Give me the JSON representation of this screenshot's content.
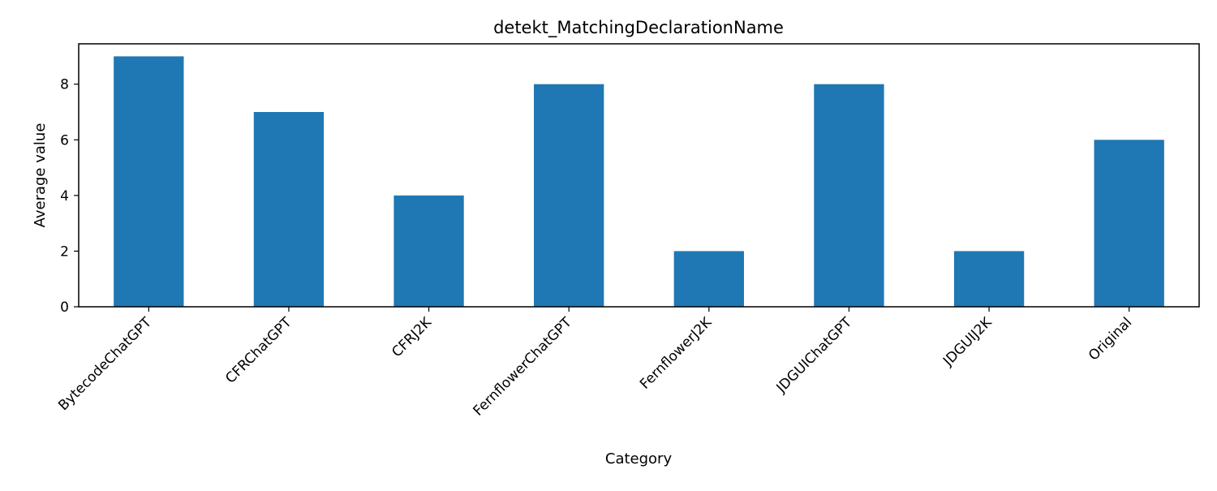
{
  "chart_data": {
    "type": "bar",
    "title": "detekt_MatchingDeclarationName",
    "xlabel": "Category",
    "ylabel": "Average value",
    "categories": [
      "BytecodeChatGPT",
      "CFRChatGPT",
      "CFRJ2K",
      "FernflowerChatGPT",
      "FernflowerJ2K",
      "JDGUIChatGPT",
      "JDGUIJ2K",
      "Original"
    ],
    "values": [
      9,
      7,
      4,
      8,
      2,
      8,
      2,
      6
    ],
    "ylim": [
      0,
      9.45
    ],
    "yticks": [
      0,
      2,
      4,
      6,
      8
    ],
    "grid": false,
    "legend": "none",
    "bar_color": "#1f77b4"
  }
}
